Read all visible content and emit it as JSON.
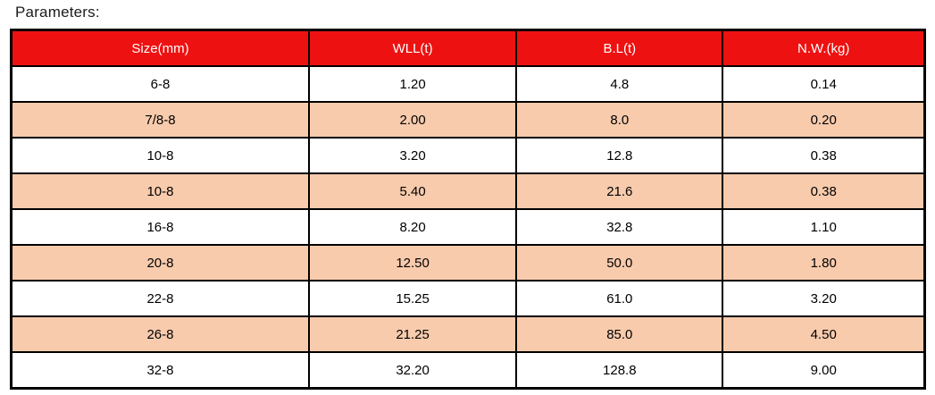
{
  "page": {
    "title": "Parameters:"
  },
  "colors": {
    "header_bg": "#ee1111",
    "header_text": "#ffffff",
    "row_bg": "#ffffff",
    "row_alt_bg": "#f8cbad",
    "border": "#000000"
  },
  "table": {
    "columns": [
      "Size(mm)",
      "WLL(t)",
      "B.L(t)",
      "N.W.(kg)"
    ],
    "rows": [
      [
        "6-8",
        "1.20",
        "4.8",
        "0.14"
      ],
      [
        "7/8-8",
        "2.00",
        "8.0",
        "0.20"
      ],
      [
        "10-8",
        "3.20",
        "12.8",
        "0.38"
      ],
      [
        "10-8",
        "5.40",
        "21.6",
        "0.38"
      ],
      [
        "16-8",
        "8.20",
        "32.8",
        "1.10"
      ],
      [
        "20-8",
        "12.50",
        "50.0",
        "1.80"
      ],
      [
        "22-8",
        "15.25",
        "61.0",
        "3.20"
      ],
      [
        "26-8",
        "21.25",
        "85.0",
        "4.50"
      ],
      [
        "32-8",
        "32.20",
        "128.8",
        "9.00"
      ]
    ]
  }
}
